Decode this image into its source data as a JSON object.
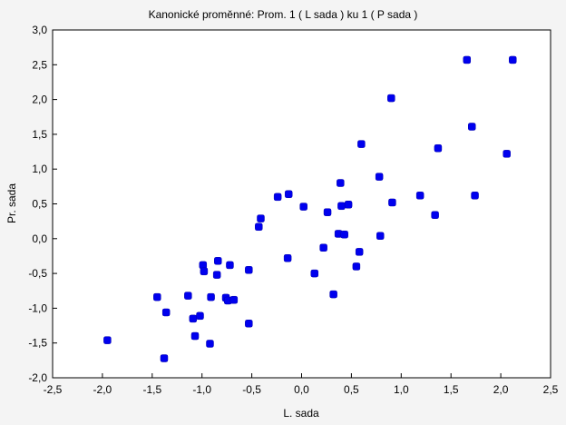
{
  "chart_data": {
    "type": "scatter",
    "title": "Kanonické proměnné: Prom.   1 ( L sada ) ku   1 ( P sada )",
    "xlabel": "L. sada",
    "ylabel": "Pr. sada",
    "xlim": [
      -2.5,
      2.5
    ],
    "ylim": [
      -2.0,
      3.0
    ],
    "xticks": [
      "-2,5",
      "-2,0",
      "-1,5",
      "-1,0",
      "-0,5",
      "0,0",
      "0,5",
      "1,0",
      "1,5",
      "2,0",
      "2,5"
    ],
    "yticks": [
      "-2,0",
      "-1,5",
      "-1,0",
      "-0,5",
      "0,0",
      "0,5",
      "1,0",
      "1,5",
      "2,0",
      "2,5",
      "3,0"
    ],
    "grid": false,
    "marker_color": "#0000ee",
    "points": [
      {
        "x": -1.95,
        "y": -1.46
      },
      {
        "x": -1.45,
        "y": -0.84
      },
      {
        "x": -1.36,
        "y": -1.06
      },
      {
        "x": -1.38,
        "y": -1.72
      },
      {
        "x": -1.14,
        "y": -0.82
      },
      {
        "x": -1.09,
        "y": -1.15
      },
      {
        "x": -1.07,
        "y": -1.4
      },
      {
        "x": -1.02,
        "y": -1.11
      },
      {
        "x": -0.99,
        "y": -0.38
      },
      {
        "x": -0.98,
        "y": -0.47
      },
      {
        "x": -0.92,
        "y": -1.51
      },
      {
        "x": -0.91,
        "y": -0.84
      },
      {
        "x": -0.85,
        "y": -0.52
      },
      {
        "x": -0.84,
        "y": -0.32
      },
      {
        "x": -0.76,
        "y": -0.85
      },
      {
        "x": -0.74,
        "y": -0.89
      },
      {
        "x": -0.72,
        "y": -0.38
      },
      {
        "x": -0.68,
        "y": -0.88
      },
      {
        "x": -0.53,
        "y": -1.22
      },
      {
        "x": -0.53,
        "y": -0.45
      },
      {
        "x": -0.43,
        "y": 0.17
      },
      {
        "x": -0.41,
        "y": 0.29
      },
      {
        "x": -0.24,
        "y": 0.6
      },
      {
        "x": -0.13,
        "y": 0.64
      },
      {
        "x": -0.14,
        "y": -0.28
      },
      {
        "x": 0.02,
        "y": 0.46
      },
      {
        "x": 0.13,
        "y": -0.5
      },
      {
        "x": 0.22,
        "y": -0.13
      },
      {
        "x": 0.26,
        "y": 0.38
      },
      {
        "x": 0.32,
        "y": -0.8
      },
      {
        "x": 0.37,
        "y": 0.07
      },
      {
        "x": 0.39,
        "y": 0.8
      },
      {
        "x": 0.4,
        "y": 0.47
      },
      {
        "x": 0.43,
        "y": 0.06
      },
      {
        "x": 0.47,
        "y": 0.49
      },
      {
        "x": 0.55,
        "y": -0.4
      },
      {
        "x": 0.58,
        "y": -0.19
      },
      {
        "x": 0.6,
        "y": 1.36
      },
      {
        "x": 0.78,
        "y": 0.89
      },
      {
        "x": 0.79,
        "y": 0.04
      },
      {
        "x": 0.9,
        "y": 2.02
      },
      {
        "x": 0.91,
        "y": 0.52
      },
      {
        "x": 1.19,
        "y": 0.62
      },
      {
        "x": 1.34,
        "y": 0.34
      },
      {
        "x": 1.37,
        "y": 1.3
      },
      {
        "x": 1.66,
        "y": 2.57
      },
      {
        "x": 1.71,
        "y": 1.61
      },
      {
        "x": 1.74,
        "y": 0.62
      },
      {
        "x": 2.06,
        "y": 1.22
      },
      {
        "x": 2.12,
        "y": 2.57
      }
    ]
  }
}
